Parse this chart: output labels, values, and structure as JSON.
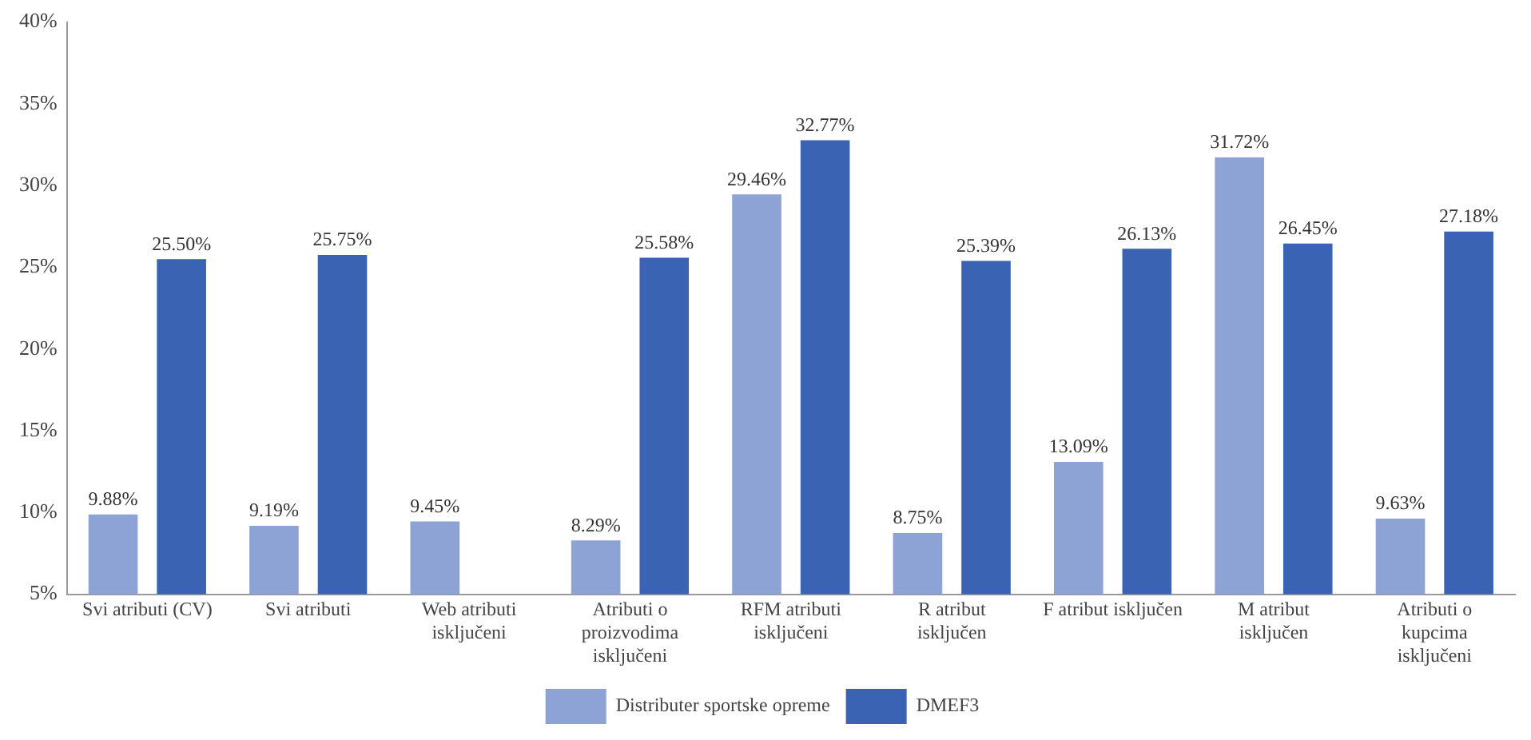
{
  "chart_data": {
    "type": "bar",
    "categories": [
      "Svi atributi (CV)",
      "Svi atributi",
      "Web atributi isključeni",
      "Atributi o proizvodima isključeni",
      "RFM atributi isključeni",
      "R atribut isključen",
      "F atribut isključen",
      "M atribut isključen",
      "Atributi o kupcima isključeni"
    ],
    "series": [
      {
        "name": "Distributer sportske opreme",
        "color": "#8da2d5",
        "values": [
          9.88,
          9.19,
          9.45,
          8.29,
          29.46,
          8.75,
          13.09,
          31.72,
          9.63
        ],
        "value_labels": [
          "9.88%",
          "9.19%",
          "9.45%",
          "8.29%",
          "29.46%",
          "8.75%",
          "13.09%",
          "31.72%",
          "9.63%"
        ]
      },
      {
        "name": "DMEF3",
        "color": "#3b63b3",
        "values": [
          25.5,
          25.75,
          null,
          25.58,
          32.77,
          25.39,
          26.13,
          26.45,
          27.18
        ],
        "value_labels": [
          "25.50%",
          "25.75%",
          null,
          "25.58%",
          "32.77%",
          "25.39%",
          "26.13%",
          "26.45%",
          "27.18%"
        ]
      }
    ],
    "ylim": [
      5,
      40
    ],
    "yticks": [
      {
        "value": 5,
        "label": "5%"
      },
      {
        "value": 10,
        "label": "10%"
      },
      {
        "value": 15,
        "label": "15%"
      },
      {
        "value": 20,
        "label": "20%"
      },
      {
        "value": 25,
        "label": "25%"
      },
      {
        "value": 30,
        "label": "30%"
      },
      {
        "value": 35,
        "label": "35%"
      },
      {
        "value": 40,
        "label": "40%"
      }
    ],
    "grid": false,
    "legend": "bottom"
  }
}
